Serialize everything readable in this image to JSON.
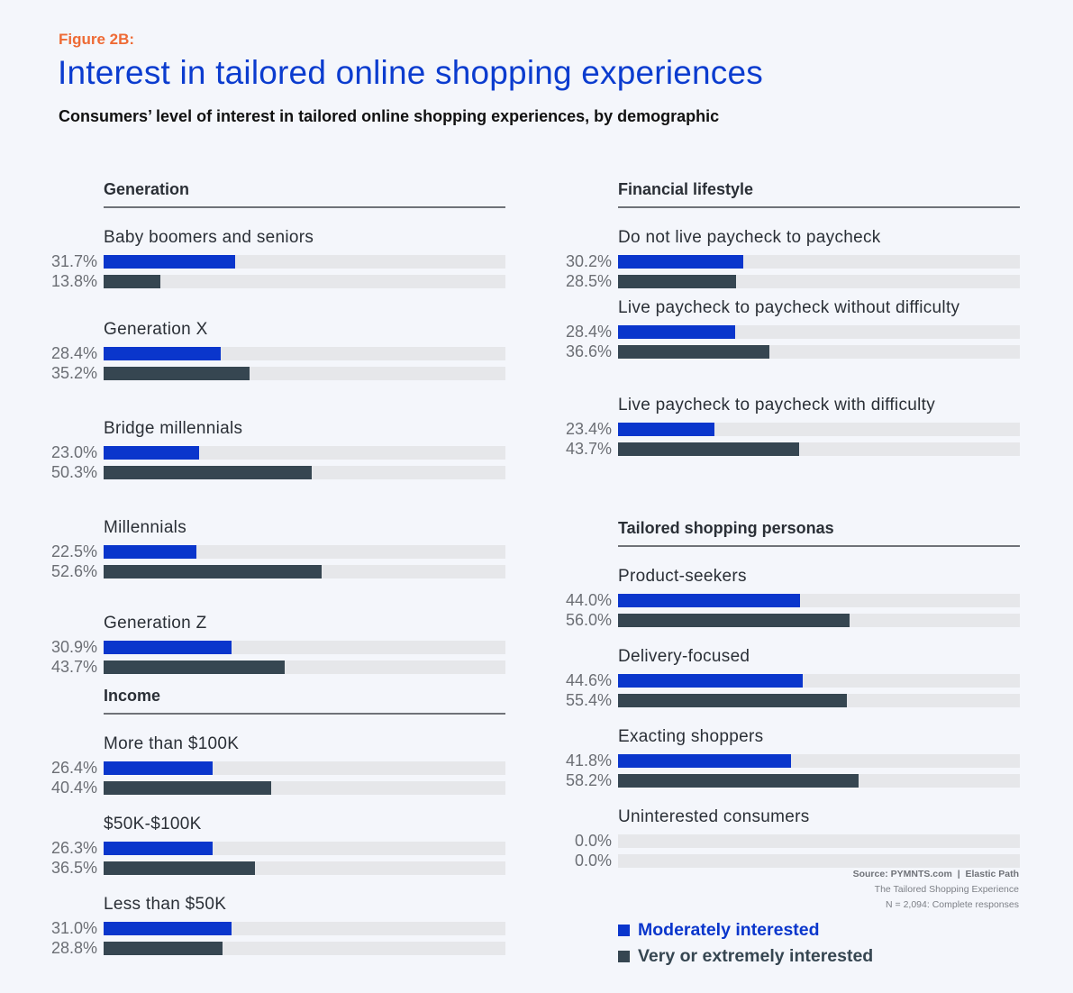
{
  "header": {
    "figure_label": "Figure 2B:",
    "title": "Interest in tailored online shopping experiences",
    "subtitle": "Consumers’ level of interest in tailored online shopping experiences, by demographic"
  },
  "colors": {
    "moderately": "#0a36cc",
    "very": "#364651",
    "track": "#e6e7ea",
    "figure_label": "#ee6a35",
    "title": "#0b3ccf"
  },
  "legend": {
    "moderately": "Moderately interested",
    "very": "Very or extremely interested"
  },
  "source": {
    "line1": "Source: PYMNTS.com  |  Elastic Path",
    "line2": "The Tailored Shopping Experience",
    "line3": "N = 2,094: Complete responses"
  },
  "chart_data": {
    "type": "bar",
    "orientation": "horizontal",
    "title": "Interest in tailored online shopping experiences",
    "subtitle": "Consumers’ level of interest in tailored online shopping experiences, by demographic",
    "series_names": [
      "Moderately interested",
      "Very or extremely interested"
    ],
    "xlim": [
      0,
      100
    ],
    "unit": "%",
    "sections": [
      {
        "title": "Generation",
        "groups": [
          {
            "label": "Baby boomers and seniors",
            "moderately": 31.7,
            "very": 13.8,
            "moderately_label": "31.7%",
            "very_label": "13.8%"
          },
          {
            "label": "Generation X",
            "moderately": 28.4,
            "very": 35.2,
            "moderately_label": "28.4%",
            "very_label": "35.2%"
          },
          {
            "label": "Bridge millennials",
            "moderately": 23.0,
            "very": 50.3,
            "moderately_label": "23.0%",
            "very_label": "50.3%"
          },
          {
            "label": "Millennials",
            "moderately": 22.5,
            "very": 52.6,
            "moderately_label": "22.5%",
            "very_label": "52.6%"
          },
          {
            "label": "Generation Z",
            "moderately": 30.9,
            "very": 43.7,
            "moderately_label": "30.9%",
            "very_label": "43.7%"
          }
        ]
      },
      {
        "title": "Income",
        "groups": [
          {
            "label": "More than $100K",
            "moderately": 26.4,
            "very": 40.4,
            "moderately_label": "26.4%",
            "very_label": "40.4%"
          },
          {
            "label": "$50K-$100K",
            "moderately": 26.3,
            "very": 36.5,
            "moderately_label": "26.3%",
            "very_label": "36.5%"
          },
          {
            "label": "Less than $50K",
            "moderately": 31.0,
            "very": 28.8,
            "moderately_label": "31.0%",
            "very_label": "28.8%"
          }
        ]
      },
      {
        "title": "Financial lifestyle",
        "groups": [
          {
            "label": "Do not live paycheck to paycheck",
            "moderately": 30.2,
            "very": 28.5,
            "moderately_label": "30.2%",
            "very_label": "28.5%"
          },
          {
            "label": "Live paycheck to paycheck without difficulty",
            "moderately": 28.4,
            "very": 36.6,
            "moderately_label": "28.4%",
            "very_label": "36.6%"
          },
          {
            "label": "Live paycheck to paycheck with difficulty",
            "moderately": 23.4,
            "very": 43.7,
            "moderately_label": "23.4%",
            "very_label": "43.7%"
          }
        ]
      },
      {
        "title": "Tailored shopping personas",
        "groups": [
          {
            "label": "Product-seekers",
            "moderately": 44.0,
            "very": 56.0,
            "moderately_label": "44.0%",
            "very_label": "56.0%"
          },
          {
            "label": "Delivery-focused",
            "moderately": 44.6,
            "very": 55.4,
            "moderately_label": "44.6%",
            "very_label": "55.4%"
          },
          {
            "label": "Exacting shoppers",
            "moderately": 41.8,
            "very": 58.2,
            "moderately_label": "41.8%",
            "very_label": "58.2%"
          },
          {
            "label": "Uninterested consumers",
            "moderately": 0.0,
            "very": 0.0,
            "moderately_label": "0.0%",
            "very_label": "0.0%"
          }
        ]
      }
    ]
  }
}
